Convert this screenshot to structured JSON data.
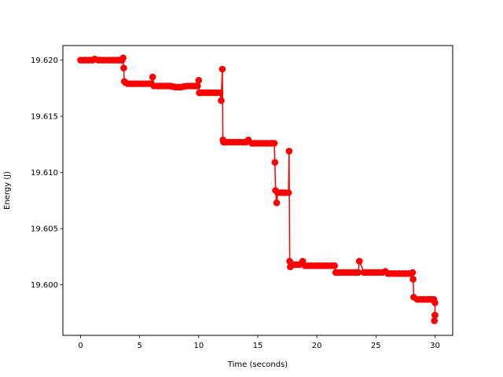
{
  "chart_data": {
    "type": "line",
    "title": "",
    "xlabel": "Time (seconds)",
    "ylabel": "Energy (J)",
    "xlim": [
      -1.5,
      31.5
    ],
    "ylim": [
      19.5955,
      19.6213
    ],
    "xticks": [
      0,
      5,
      10,
      15,
      20,
      25,
      30
    ],
    "xtick_labels": [
      "0",
      "5",
      "10",
      "15",
      "20",
      "25",
      "30"
    ],
    "yticks": [
      19.6,
      19.605,
      19.61,
      19.615,
      19.62
    ],
    "ytick_labels": [
      "19.600",
      "19.605",
      "19.610",
      "19.615",
      "19.620"
    ],
    "grid": false,
    "series": [
      {
        "color": "#ff0000",
        "marker": "circle",
        "x": [
          0.0,
          0.5,
          1.0,
          1.2,
          1.5,
          2.0,
          2.5,
          3.0,
          3.4,
          3.5,
          3.6,
          3.65,
          3.7,
          3.8,
          4.0,
          4.5,
          5.0,
          5.5,
          6.0,
          6.1,
          6.2,
          6.5,
          7.0,
          7.5,
          7.6,
          8.0,
          8.5,
          9.0,
          9.5,
          9.9,
          10.0,
          10.05,
          10.1,
          10.5,
          11.0,
          11.5,
          11.8,
          11.9,
          12.0,
          12.05,
          12.1,
          12.5,
          13.0,
          13.5,
          14.0,
          14.2,
          14.5,
          15.0,
          15.5,
          16.0,
          16.4,
          16.45,
          16.5,
          16.6,
          16.7,
          17.0,
          17.3,
          17.6,
          17.65,
          17.7,
          17.75,
          18.0,
          18.5,
          18.8,
          19.0,
          19.5,
          20.0,
          20.5,
          21.0,
          21.5,
          21.6,
          22.0,
          22.5,
          23.0,
          23.5,
          23.6,
          24.0,
          24.5,
          25.0,
          25.5,
          25.8,
          26.0,
          26.5,
          27.0,
          27.5,
          28.0,
          28.1,
          28.15,
          28.2,
          28.5,
          29.0,
          29.5,
          29.9,
          30.0,
          30.0,
          29.95,
          30.0
        ],
        "y": [
          19.62,
          19.62,
          19.62,
          19.6201,
          19.62,
          19.62,
          19.62,
          19.62,
          19.62,
          19.62,
          19.6202,
          19.6193,
          19.6181,
          19.618,
          19.6179,
          19.6179,
          19.6179,
          19.6179,
          19.6179,
          19.6185,
          19.6177,
          19.6177,
          19.6177,
          19.6177,
          19.6177,
          19.6176,
          19.6176,
          19.6177,
          19.6177,
          19.6177,
          19.6182,
          19.6171,
          19.6171,
          19.6171,
          19.6171,
          19.6171,
          19.6171,
          19.6164,
          19.6192,
          19.6129,
          19.6127,
          19.6127,
          19.6127,
          19.6127,
          19.6127,
          19.6129,
          19.6126,
          19.6126,
          19.6126,
          19.6126,
          19.6126,
          19.6109,
          19.6084,
          19.6073,
          19.6082,
          19.6082,
          19.6082,
          19.6082,
          19.6119,
          19.6021,
          19.6016,
          19.6018,
          19.6018,
          19.6021,
          19.6017,
          19.6017,
          19.6017,
          19.6017,
          19.6017,
          19.6017,
          19.6011,
          19.6011,
          19.6011,
          19.6011,
          19.6011,
          19.6021,
          19.6011,
          19.6011,
          19.6011,
          19.6011,
          19.6012,
          19.601,
          19.601,
          19.601,
          19.601,
          19.601,
          19.6011,
          19.6005,
          19.5989,
          19.5987,
          19.5987,
          19.5987,
          19.5987,
          19.5984,
          19.5973,
          19.5968,
          19.5973
        ]
      }
    ]
  }
}
